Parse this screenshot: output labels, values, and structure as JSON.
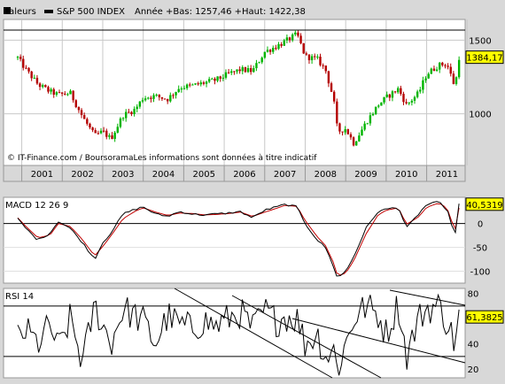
{
  "header": {
    "label": "Valeurs",
    "series_name": "S&P 500 INDEX",
    "annee_text": "Année +Bas: 1257,46 +Haut: 1422,38"
  },
  "copyright": "© IT-Finance.com / BoursoramaLes informations sont données à titre indicatif",
  "colors": {
    "background": "#d8d8d8",
    "panel": "#ffffff",
    "up_candle": "#00b400",
    "down_candle": "#b40000",
    "badge": "#ffff00",
    "macd_line": "#000000",
    "signal_line": "#c00000"
  },
  "chart_data": [
    {
      "type": "candlestick",
      "title": "S&P 500 INDEX",
      "x_ticks": [
        "2001",
        "2002",
        "2003",
        "2004",
        "2005",
        "2006",
        "2007",
        "2008",
        "2009",
        "2010",
        "2011"
      ],
      "y_ticks": [
        1000,
        1500
      ],
      "ylim": [
        650,
        1640
      ],
      "last_value": 1384.17,
      "last_value_label": "1384,17",
      "x": [
        2000.9,
        2001.1,
        2001.4,
        2001.7,
        2001.9,
        2002.2,
        2002.5,
        2002.8,
        2003.0,
        2003.2,
        2003.5,
        2003.8,
        2004.0,
        2004.3,
        2004.6,
        2004.9,
        2005.2,
        2005.5,
        2005.8,
        2006.1,
        2006.4,
        2006.7,
        2007.0,
        2007.3,
        2007.5,
        2007.8,
        2008.0,
        2008.3,
        2008.5,
        2008.7,
        2008.8,
        2009.0,
        2009.2,
        2009.5,
        2009.8,
        2010.0,
        2010.3,
        2010.5,
        2010.8,
        2011.0,
        2011.3,
        2011.5,
        2011.7,
        2011.8
      ],
      "close": [
        1380,
        1300,
        1200,
        1150,
        1130,
        1140,
        980,
        850,
        880,
        830,
        990,
        1030,
        1110,
        1120,
        1100,
        1180,
        1190,
        1210,
        1230,
        1270,
        1300,
        1290,
        1420,
        1460,
        1490,
        1540,
        1390,
        1370,
        1300,
        1100,
        880,
        900,
        800,
        940,
        1060,
        1110,
        1170,
        1060,
        1140,
        1270,
        1330,
        1340,
        1180,
        1384.17
      ]
    },
    {
      "type": "line",
      "title": "MACD 12 26 9",
      "y_ticks": [
        0,
        -50,
        -100
      ],
      "ylim": [
        -125,
        55
      ],
      "last_value": 40.5319,
      "last_value_label": "40,5319",
      "series": [
        {
          "values": [
            10,
            -10,
            -35,
            -20,
            5,
            -10,
            -40,
            -75,
            -40,
            -20,
            20,
            30,
            35,
            20,
            15,
            25,
            20,
            18,
            20,
            22,
            25,
            12,
            28,
            35,
            40,
            35,
            0,
            -35,
            -50,
            -90,
            -115,
            -100,
            -70,
            -10,
            25,
            30,
            35,
            -10,
            20,
            40,
            45,
            30,
            -25,
            40.5319
          ]
        },
        {
          "values": [
            12,
            -6,
            -30,
            -24,
            0,
            -6,
            -34,
            -68,
            -48,
            -26,
            10,
            26,
            33,
            24,
            17,
            22,
            21,
            18,
            19,
            21,
            24,
            15,
            24,
            32,
            38,
            36,
            6,
            -28,
            -46,
            -82,
            -110,
            -104,
            -78,
            -22,
            18,
            28,
            33,
            -2,
            14,
            34,
            43,
            33,
            -15,
            33
          ]
        }
      ]
    },
    {
      "type": "line",
      "title": "RSI 14",
      "y_ticks": [
        80,
        60,
        40,
        20
      ],
      "ylim": [
        13,
        84
      ],
      "last_value": 61.3825,
      "last_value_label": "61,3825",
      "values": [
        45,
        50,
        40,
        55,
        35,
        60,
        25,
        70,
        55,
        40,
        68,
        62,
        58,
        40,
        62,
        55,
        52,
        58,
        54,
        60,
        65,
        52,
        66,
        58,
        62,
        60,
        40,
        48,
        30,
        35,
        20,
        40,
        60,
        70,
        63,
        48,
        72,
        30,
        60,
        68,
        70,
        58,
        40,
        61.3825
      ]
    }
  ]
}
